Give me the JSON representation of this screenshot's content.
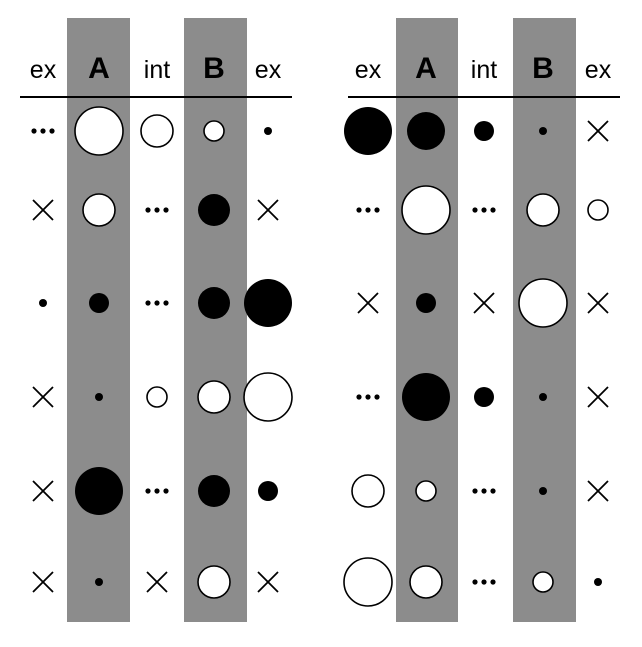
{
  "colors": {
    "band": "#8c8c8c",
    "ink": "#000000",
    "paper": "#ffffff"
  },
  "legend": {
    "glyphs": [
      "cross",
      "dots",
      "circle-open",
      "circle-filled"
    ],
    "sizes": [
      "xs",
      "s",
      "m",
      "l",
      "xl"
    ]
  },
  "panels": [
    {
      "headers": [
        "ex",
        "A",
        "int",
        "B",
        "ex"
      ],
      "rows": [
        [
          {
            "glyph": "dots"
          },
          {
            "glyph": "circle-open",
            "size": "xl"
          },
          {
            "glyph": "circle-open",
            "size": "m"
          },
          {
            "glyph": "circle-open",
            "size": "s"
          },
          {
            "glyph": "circle-filled",
            "size": "xs"
          }
        ],
        [
          {
            "glyph": "cross"
          },
          {
            "glyph": "circle-open",
            "size": "m"
          },
          {
            "glyph": "dots"
          },
          {
            "glyph": "circle-filled",
            "size": "m"
          },
          {
            "glyph": "cross"
          }
        ],
        [
          {
            "glyph": "circle-filled",
            "size": "xs"
          },
          {
            "glyph": "circle-filled",
            "size": "s"
          },
          {
            "glyph": "dots"
          },
          {
            "glyph": "circle-filled",
            "size": "m"
          },
          {
            "glyph": "circle-filled",
            "size": "xl"
          }
        ],
        [
          {
            "glyph": "cross"
          },
          {
            "glyph": "circle-filled",
            "size": "xs"
          },
          {
            "glyph": "circle-open",
            "size": "s"
          },
          {
            "glyph": "circle-open",
            "size": "m"
          },
          {
            "glyph": "circle-open",
            "size": "xl"
          }
        ],
        [
          {
            "glyph": "cross"
          },
          {
            "glyph": "circle-filled",
            "size": "xl"
          },
          {
            "glyph": "dots"
          },
          {
            "glyph": "circle-filled",
            "size": "m"
          },
          {
            "glyph": "circle-filled",
            "size": "s"
          }
        ],
        [
          {
            "glyph": "cross"
          },
          {
            "glyph": "circle-filled",
            "size": "xs"
          },
          {
            "glyph": "cross"
          },
          {
            "glyph": "circle-open",
            "size": "m"
          },
          {
            "glyph": "cross"
          }
        ]
      ]
    },
    {
      "headers": [
        "ex",
        "A",
        "int",
        "B",
        "ex"
      ],
      "rows": [
        [
          {
            "glyph": "circle-filled",
            "size": "xl"
          },
          {
            "glyph": "circle-filled",
            "size": "l"
          },
          {
            "glyph": "circle-filled",
            "size": "s"
          },
          {
            "glyph": "circle-filled",
            "size": "xs"
          },
          {
            "glyph": "cross"
          }
        ],
        [
          {
            "glyph": "dots"
          },
          {
            "glyph": "circle-open",
            "size": "xl"
          },
          {
            "glyph": "dots"
          },
          {
            "glyph": "circle-open",
            "size": "m"
          },
          {
            "glyph": "circle-open",
            "size": "s"
          }
        ],
        [
          {
            "glyph": "cross"
          },
          {
            "glyph": "circle-filled",
            "size": "s"
          },
          {
            "glyph": "cross"
          },
          {
            "glyph": "circle-open",
            "size": "xl"
          },
          {
            "glyph": "cross"
          }
        ],
        [
          {
            "glyph": "dots"
          },
          {
            "glyph": "circle-filled",
            "size": "xl"
          },
          {
            "glyph": "circle-filled",
            "size": "s"
          },
          {
            "glyph": "circle-filled",
            "size": "xs"
          },
          {
            "glyph": "cross"
          }
        ],
        [
          {
            "glyph": "circle-open",
            "size": "m"
          },
          {
            "glyph": "circle-open",
            "size": "s"
          },
          {
            "glyph": "dots"
          },
          {
            "glyph": "circle-filled",
            "size": "xs"
          },
          {
            "glyph": "cross"
          }
        ],
        [
          {
            "glyph": "circle-open",
            "size": "xl"
          },
          {
            "glyph": "circle-open",
            "size": "m"
          },
          {
            "glyph": "dots"
          },
          {
            "glyph": "circle-open",
            "size": "s"
          },
          {
            "glyph": "circle-filled",
            "size": "xs"
          }
        ]
      ]
    }
  ]
}
